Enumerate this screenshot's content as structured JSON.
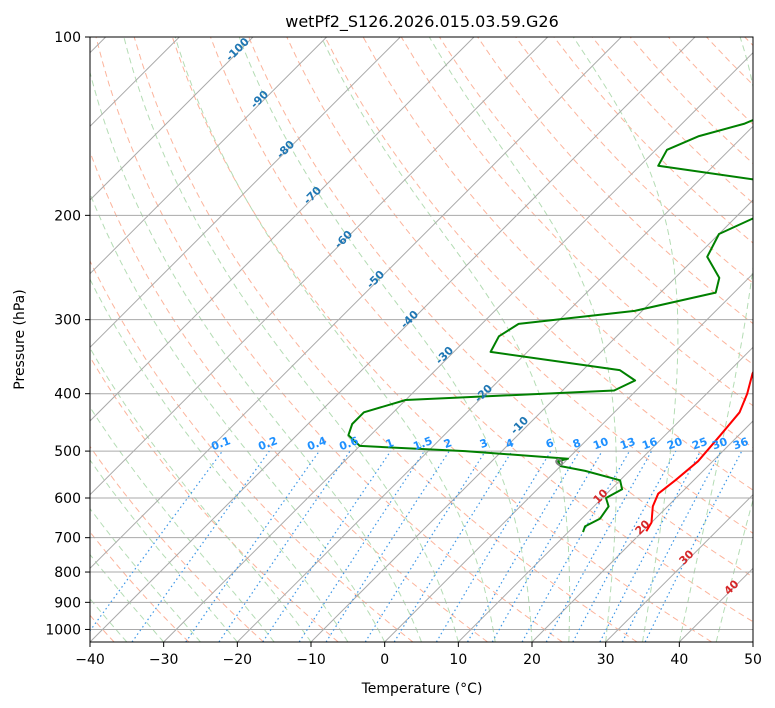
{
  "chart_data": {
    "type": "skew-t",
    "title": "wetPf2_S126.2026.015.03.59.G26",
    "xlabel": "Temperature (°C)",
    "ylabel": "Pressure (hPa)",
    "xlim": [
      -40,
      50
    ],
    "ylim_hpa": [
      1050,
      100
    ],
    "x_ticks": [
      "−40",
      "−30",
      "−20",
      "−10",
      "0",
      "10",
      "20",
      "30",
      "40",
      "50"
    ],
    "y_ticks": [
      {
        "p": 100,
        "label": "100"
      },
      {
        "p": 200,
        "label": "200"
      },
      {
        "p": 300,
        "label": "300"
      },
      {
        "p": 400,
        "label": "400"
      },
      {
        "p": 500,
        "label": "500"
      },
      {
        "p": 600,
        "label": "600"
      },
      {
        "p": 700,
        "label": "700"
      },
      {
        "p": 800,
        "label": "800"
      },
      {
        "p": 900,
        "label": "900"
      },
      {
        "p": 1000,
        "label": "1000"
      }
    ],
    "series": [
      {
        "name": "temperature",
        "color": "#ff0000",
        "points": [
          [
            100,
            6.5
          ],
          [
            115,
            6.0
          ],
          [
            125,
            8.5
          ],
          [
            140,
            8.0
          ],
          [
            150,
            3.0
          ],
          [
            165,
            1.5
          ],
          [
            180,
            1.8
          ],
          [
            200,
            3.0
          ],
          [
            240,
            4.5
          ],
          [
            280,
            8.0
          ],
          [
            300,
            10.5
          ],
          [
            320,
            12.5
          ],
          [
            340,
            12.0
          ],
          [
            370,
            13.5
          ],
          [
            400,
            15.5
          ],
          [
            430,
            17.0
          ],
          [
            470,
            17.5
          ],
          [
            520,
            18.0
          ],
          [
            560,
            17.5
          ],
          [
            590,
            17.0
          ],
          [
            620,
            18.0
          ],
          [
            660,
            20.0
          ],
          [
            683,
            20.5
          ]
        ]
      },
      {
        "name": "dewpoint",
        "color": "#008000",
        "points": [
          [
            100,
            -3.5
          ],
          [
            110,
            -4.5
          ],
          [
            120,
            -8.0
          ],
          [
            130,
            -18.0
          ],
          [
            140,
            -21.5
          ],
          [
            147,
            -26.0
          ],
          [
            155,
            -28.5
          ],
          [
            165,
            -27.5
          ],
          [
            175,
            -11.0
          ],
          [
            185,
            -5.0
          ],
          [
            200,
            -7.0
          ],
          [
            215,
            -10.0
          ],
          [
            235,
            -8.5
          ],
          [
            255,
            -4.0
          ],
          [
            270,
            -2.5
          ],
          [
            290,
            -11.0
          ],
          [
            305,
            -25.0
          ],
          [
            320,
            -26.0
          ],
          [
            340,
            -25.0
          ],
          [
            365,
            -5.0
          ],
          [
            380,
            -1.5
          ],
          [
            395,
            -3.0
          ],
          [
            410,
            -30.0
          ],
          [
            430,
            -34.0
          ],
          [
            450,
            -34.0
          ],
          [
            470,
            -33.0
          ],
          [
            490,
            -30.0
          ],
          [
            500,
            -15.0
          ],
          [
            515,
            0.0
          ],
          [
            520,
            -1.0
          ],
          [
            530,
            0.0
          ],
          [
            540,
            4.0
          ],
          [
            560,
            10.0
          ],
          [
            580,
            11.5
          ],
          [
            600,
            10.5
          ],
          [
            620,
            12.0
          ],
          [
            650,
            12.5
          ],
          [
            670,
            11.5
          ],
          [
            685,
            12.0
          ]
        ]
      }
    ],
    "dry_adiabat_labels": [
      "-100",
      "-90",
      "-80",
      "-70",
      "-60",
      "-50",
      "-40",
      "-30",
      "-20",
      "-10"
    ],
    "mixing_ratio_labels": [
      "0.1",
      "0.2",
      "0.4",
      "0.6",
      "1",
      "1.5",
      "2",
      "3",
      "4",
      "6",
      "8",
      "10",
      "13",
      "16",
      "20",
      "25",
      "30",
      "36"
    ],
    "moist_adiabat_labels": [
      "0",
      "10",
      "20",
      "30",
      "40"
    ],
    "colors": {
      "isotherm": "#aaaaaa",
      "isobar": "#aaaaaa",
      "dry_adiabat": "#fcb49c",
      "moist_adiabat": "#b4dcb4",
      "mixing_ratio": "#3c96e6",
      "dry_label": "#1f77b4",
      "mixing_label": "#1e90ff",
      "moist_label_0": "#808080",
      "moist_label": "#d62728",
      "curve": "#e6c8a0"
    }
  }
}
